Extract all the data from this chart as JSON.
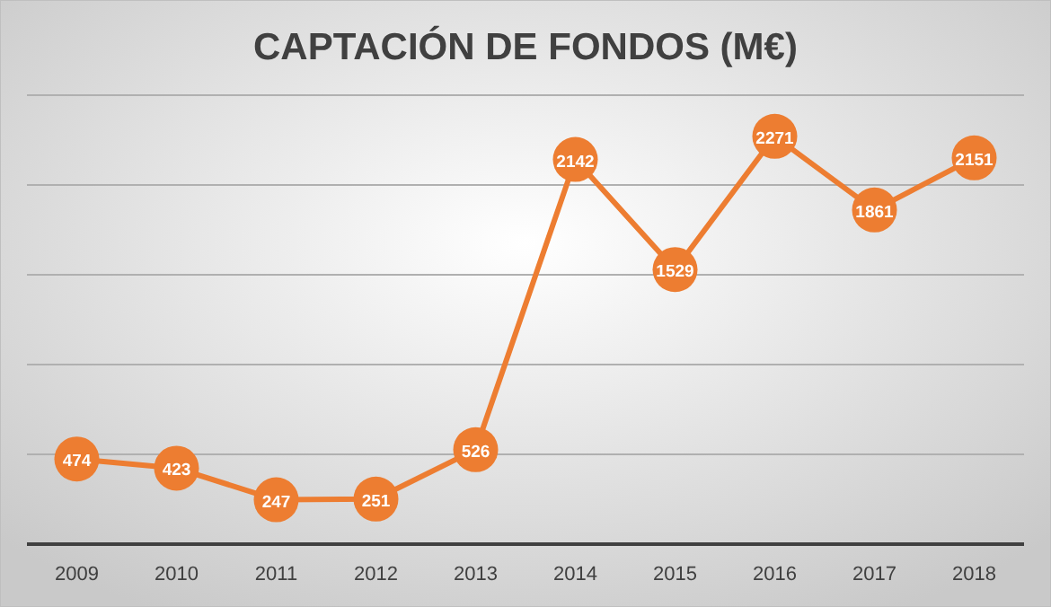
{
  "chart_data": {
    "type": "line",
    "title": "CAPTACIÓN DE FONDOS (M€)",
    "categories": [
      "2009",
      "2010",
      "2011",
      "2012",
      "2013",
      "2014",
      "2015",
      "2016",
      "2017",
      "2018"
    ],
    "series": [
      {
        "color": "#ed7d31",
        "values": [
          474,
          423,
          247,
          251,
          526,
          2142,
          1529,
          2271,
          1861,
          2151
        ]
      }
    ],
    "ylim": [
      0,
      2500
    ],
    "yticks": [
      {
        "value": 0,
        "label": null
      },
      {
        "value": 500,
        "label": null
      },
      {
        "value": 1000,
        "label": null
      },
      {
        "value": 1500,
        "label": null
      },
      {
        "value": 2000,
        "label": null
      },
      {
        "value": 2500,
        "label": null
      }
    ],
    "tick_labels": "x",
    "grid": "y",
    "marker": "circle",
    "line_style": "solid",
    "data_labels": true
  }
}
